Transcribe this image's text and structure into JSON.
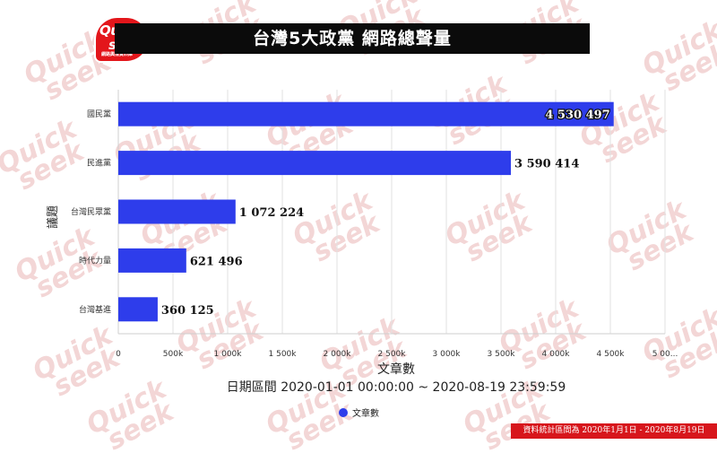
{
  "header": {
    "title": "台灣5大政黨 網路總聲量",
    "logo": {
      "line1": "Quick",
      "line2": "seek",
      "tagline": "網路輿情資料庫"
    }
  },
  "watermark": {
    "line1": "Quick",
    "line2": "seek"
  },
  "chart_data": {
    "type": "bar",
    "orientation": "horizontal",
    "categories": [
      "國民黨",
      "民進黨",
      "台灣民眾黨",
      "時代力量",
      "台灣基進"
    ],
    "series": [
      {
        "name": "文章數",
        "color": "#2e3deb",
        "values": [
          4530497,
          3590414,
          1072224,
          621496,
          360125
        ]
      }
    ],
    "data_labels": [
      "4 530 497",
      "3 590 414",
      "1 072 224",
      "621 496",
      "360 125"
    ],
    "xlabel": "文章數",
    "ylabel": "議題",
    "subtitle": "日期區間 2020-01-01 00:00:00 ~ 2020-08-19 23:59:59",
    "xlim": [
      0,
      5000000
    ],
    "xticks": [
      0,
      500000,
      1000000,
      1500000,
      2000000,
      2500000,
      3000000,
      3500000,
      4000000,
      4500000,
      5000000
    ],
    "xtick_labels": [
      "0",
      "500k",
      "1 000k",
      "1 500k",
      "2 000k",
      "2 500k",
      "3 000k",
      "3 500k",
      "4 000k",
      "4 500k",
      "5 00..."
    ],
    "grid": true,
    "legend": {
      "position": "bottom-center",
      "entries": [
        "文章數"
      ]
    }
  },
  "footer": {
    "note": "資料統計區間為 2020年1月1日 - 2020年8月19日"
  }
}
